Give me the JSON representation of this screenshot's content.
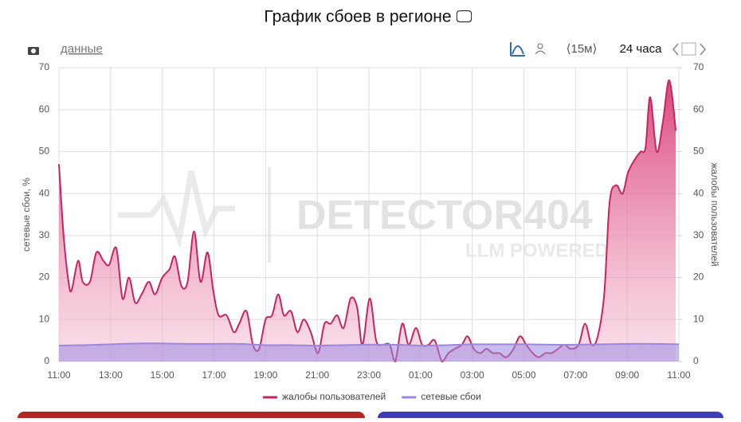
{
  "header": {
    "title": "График сбоев в регионе 🖵",
    "data_link": "данные",
    "interval": "⟨15м⟩",
    "period": "24 часа"
  },
  "watermark": {
    "line1": "DETECTOR404",
    "line2": "LLM POWERED"
  },
  "chart_data": {
    "type": "line",
    "ylabel": "сетевые сбои, %",
    "y2label": "жалобы пользователей",
    "ylim": [
      0,
      70
    ],
    "yticks": [
      0,
      10,
      20,
      30,
      40,
      50,
      60,
      70
    ],
    "y2lim": [
      0,
      70
    ],
    "y2ticks": [
      0,
      10,
      20,
      30,
      40,
      50,
      60,
      70
    ],
    "xlim": [
      0,
      24
    ],
    "xticks": [
      {
        "value": 0,
        "label": "11:00"
      },
      {
        "value": 2,
        "label": "13:00"
      },
      {
        "value": 4,
        "label": "15:00"
      },
      {
        "value": 6,
        "label": "17:00"
      },
      {
        "value": 8,
        "label": "19:00"
      },
      {
        "value": 10,
        "label": "21:00"
      },
      {
        "value": 12,
        "label": "23:00"
      },
      {
        "value": 14,
        "label": "01:00"
      },
      {
        "value": 16,
        "label": "03:00"
      },
      {
        "value": 18,
        "label": "05:00"
      },
      {
        "value": 20,
        "label": "07:00"
      },
      {
        "value": 22,
        "label": "09:00"
      },
      {
        "value": 24,
        "label": "11:00"
      }
    ],
    "grid": true,
    "legend": "bottom",
    "series": [
      {
        "name": "жалобы пользователей",
        "color": "#c8245f",
        "axis": "y2",
        "x": [
          0,
          0.18,
          0.37,
          0.49,
          0.74,
          0.92,
          1.2,
          1.45,
          1.72,
          1.94,
          2.22,
          2.46,
          2.71,
          2.95,
          3.2,
          3.48,
          3.72,
          4,
          4.28,
          4.49,
          4.74,
          4.98,
          5.23,
          5.48,
          5.75,
          5.97,
          6.18,
          6.49,
          6.77,
          6.98,
          7.26,
          7.51,
          7.75,
          8,
          8.25,
          8.49,
          8.71,
          8.98,
          9.23,
          9.48,
          9.75,
          10.03,
          10.28,
          10.52,
          10.77,
          11.02,
          11.29,
          11.54,
          11.75,
          12.03,
          12.28,
          12.52,
          12.8,
          13.02,
          13.29,
          13.54,
          13.82,
          14.06,
          14.31,
          14.55,
          14.83,
          15.08,
          15.32,
          15.6,
          15.82,
          16.06,
          16.31,
          16.55,
          16.8,
          17.05,
          17.32,
          17.6,
          17.85,
          18.09,
          18.34,
          18.58,
          18.83,
          19.08,
          19.32,
          19.57,
          19.82,
          20.12,
          20.37,
          20.62,
          20.86,
          21.11,
          21.32,
          21.57,
          21.82,
          22.03,
          22.28,
          22.52,
          22.71,
          22.89,
          23.14,
          23.38,
          23.63,
          23.88
        ],
        "values": [
          47,
          30,
          19,
          17,
          24,
          19,
          19,
          26,
          24,
          23,
          27,
          15,
          20,
          14,
          16,
          19,
          16,
          20,
          22,
          25,
          18,
          19,
          31,
          19,
          26,
          17,
          11,
          11,
          7,
          9,
          12,
          4,
          3,
          10,
          11,
          16,
          11,
          12,
          7,
          10,
          7,
          2,
          9,
          9,
          11,
          8,
          15,
          13,
          4,
          15,
          5,
          4,
          4,
          0,
          9,
          4,
          8,
          4,
          4,
          5,
          0,
          2,
          3,
          4,
          6,
          3,
          2,
          3,
          2,
          2,
          1,
          3,
          6,
          4,
          2,
          1,
          2,
          2,
          3,
          4,
          3,
          4,
          9,
          4,
          6,
          16,
          38,
          42,
          40,
          45,
          48,
          50,
          51,
          63,
          50,
          57,
          67,
          55
        ]
      },
      {
        "name": "сетевые сбои",
        "color": "#9b86e0",
        "x": [
          0,
          1,
          2,
          3,
          4,
          5,
          6,
          7,
          8,
          9,
          10,
          11,
          12,
          13,
          14,
          15,
          16,
          17,
          18,
          19,
          20,
          21,
          22,
          23,
          24
        ],
        "values": [
          3.8,
          3.9,
          4.1,
          4.3,
          4.3,
          4.2,
          4.2,
          4.2,
          3.9,
          3.9,
          3.8,
          3.9,
          4.0,
          4.0,
          3.8,
          3.9,
          4.1,
          4.1,
          4.1,
          4.0,
          4.0,
          4.1,
          4.2,
          4.2,
          4.1
        ]
      }
    ]
  }
}
